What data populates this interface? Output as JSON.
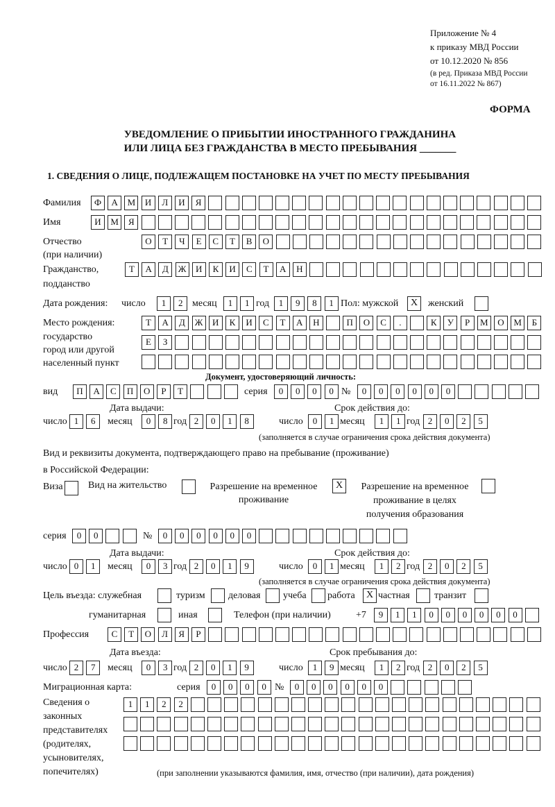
{
  "header": {
    "line1": "Приложение № 4",
    "line2": "к приказу МВД России",
    "line3": "от 10.12.2020 № 856",
    "line4": "(в ред. Приказа МВД России",
    "line5": "от 16.11.2022 № 867)",
    "form_label": "ФОРМА"
  },
  "title": {
    "line1": "УВЕДОМЛЕНИЕ О ПРИБЫТИИ ИНОСТРАННОГО ГРАЖДАНИНА",
    "line2": "ИЛИ ЛИЦА БЕЗ ГРАЖДАНСТВА В МЕСТО ПРЕБЫВАНИЯ _______"
  },
  "section1": {
    "heading": "1. СВЕДЕНИЯ О ЛИЦЕ, ПОДЛЕЖАЩЕМ ПОСТАНОВКЕ НА УЧЕТ ПО МЕСТУ ПРЕБЫВАНИЯ",
    "surname": {
      "label": "Фамилия",
      "value": "ФАМИЛИЯ"
    },
    "name": {
      "label": "Имя",
      "value": "ИМЯ"
    },
    "patronymic": {
      "label1": "Отчество",
      "label2": "(при наличии)",
      "value": "ОТЧЕСТВО"
    },
    "citizenship": {
      "label1": "Гражданство,",
      "label2": "подданство",
      "value": "ТАДЖИКИСТАН"
    },
    "birth_date": {
      "label": "Дата рождения:",
      "day_label": "число",
      "day": "12",
      "month_label": "месяц",
      "month": "11",
      "year_label": "год",
      "year": "1981"
    },
    "sex": {
      "label": "Пол: мужской",
      "male": "X",
      "female_label": "женский",
      "female": ""
    },
    "birth_place": {
      "label1": "Место рождения:",
      "label2": "государство",
      "label3": "город или другой",
      "label4": "населенный пункт",
      "row1": "ТАДЖИКИСТАН ПОС. КУРМОМБ",
      "row2": "ЕЗ",
      "row3": ""
    },
    "id_document": {
      "heading": "Документ, удостоверяющий личность:",
      "type_label": "вид",
      "type": "ПАСПОРТ",
      "series_label": "серия",
      "series": "0000",
      "number_label": "№",
      "number": "000000",
      "issue_label": "Дата выдачи:",
      "issue": {
        "day": "16",
        "month": "08",
        "year": "2018"
      },
      "expiry_label": "Срок действия до:",
      "expiry": {
        "day": "01",
        "month": "11",
        "year": "2025"
      },
      "note": "(заполняется в случае ограничения срока действия документа)"
    },
    "labels": {
      "day": "число",
      "month": "месяц",
      "year": "год"
    },
    "residence_doc": {
      "label1": "Вид и реквизиты документа, подтверждающего право на пребывание (проживание)",
      "label2": "в Российской Федерации:",
      "visa_label": "Виза",
      "visa": "",
      "residence_permit_label": "Вид на жительство",
      "residence_permit": "",
      "temp_permit_label1": "Разрешение на временное",
      "temp_permit_label2": "проживание",
      "temp_permit": "X",
      "edu_permit_label1": "Разрешение на временное",
      "edu_permit_label2": "проживание в целях",
      "edu_permit_label3": "получения образования",
      "edu_permit": "",
      "series_label": "серия",
      "series": "00",
      "number_label": "№",
      "number": "000000",
      "issue_label": "Дата выдачи:",
      "issue": {
        "day": "01",
        "month": "03",
        "year": "2019"
      },
      "expiry_label": "Срок действия до:",
      "expiry": {
        "day": "01",
        "month": "12",
        "year": "2025"
      },
      "note": "(заполняется в случае ограничения срока действия документа)"
    },
    "purpose": {
      "label": "Цель въезда: служебная",
      "official": "",
      "tourism_label": "туризм",
      "tourism": "",
      "business_label": "деловая",
      "business": "",
      "study_label": "учеба",
      "study": "",
      "work_label": "работа",
      "work": "X",
      "private_label": "частная",
      "private": "",
      "transit_label": "транзит",
      "transit": "",
      "humanitarian_label": "гуманитарная",
      "humanitarian": "",
      "other_label": "иная",
      "other": ""
    },
    "phone": {
      "label": "Телефон (при наличии)",
      "prefix": "+7",
      "value": "911000000"
    },
    "profession": {
      "label": "Профессия",
      "value": "СТОЛЯР"
    },
    "entry": {
      "entry_label": "Дата въезда:",
      "entry": {
        "day": "27",
        "month": "03",
        "year": "2019"
      },
      "stay_label": "Срок пребывания до:",
      "stay": {
        "day": "19",
        "month": "12",
        "year": "2025"
      }
    },
    "migration_card": {
      "label": "Миграционная карта:",
      "series_label": "серия",
      "series": "0000",
      "number_label": "№",
      "number": "000000"
    },
    "representatives": {
      "label1": "Сведения о",
      "label2": "законных",
      "label3": "представителях",
      "label4": "(родителях,",
      "label5": "усыновителях,",
      "label6": "попечителях)",
      "row1": "1122",
      "row2": "",
      "row3": "",
      "note": "(при заполнении указываются фамилия, имя, отчество (при наличии), дата рождения)"
    }
  }
}
